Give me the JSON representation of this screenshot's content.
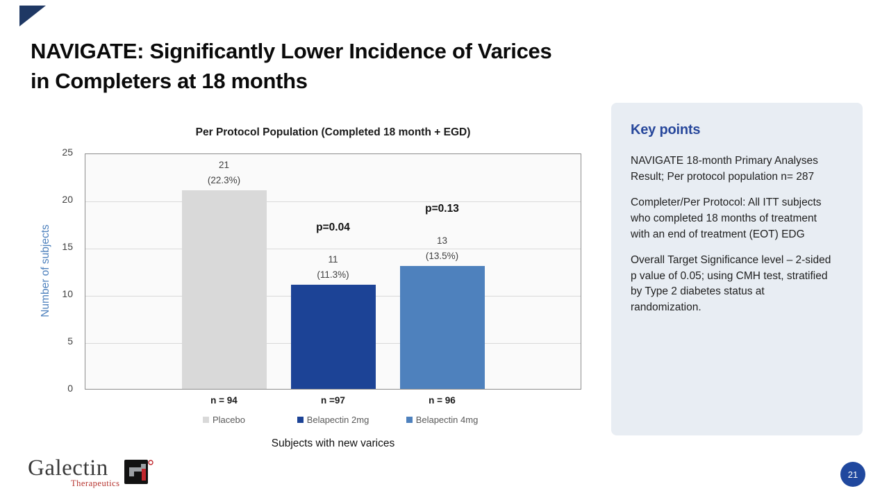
{
  "slide": {
    "title_line1": "NAVIGATE: Significantly Lower Incidence of Varices",
    "title_line2": "in Completers at 18 months",
    "page_number": "21"
  },
  "chart_data": {
    "type": "bar",
    "title": "Per Protocol Population (Completed 18 month + EGD)",
    "ylabel": "Number of subjects",
    "xlabel": "Subjects with new varices",
    "ylim": [
      0,
      25
    ],
    "yticks": [
      0,
      5,
      10,
      15,
      20,
      25
    ],
    "grid": "horizontal",
    "categories": [
      "Placebo",
      "Belapectin 2mg",
      "Belapectin 4mg"
    ],
    "values": [
      21,
      11,
      13
    ],
    "bar_labels": [
      [
        "21",
        "(22.3%)"
      ],
      [
        "11",
        "(11.3%)"
      ],
      [
        "13",
        "(13.5%)"
      ]
    ],
    "p_values": [
      "",
      "p=0.04",
      "p=0.13"
    ],
    "n_labels": [
      "n = 94",
      "n =97",
      "n = 96"
    ],
    "colors": [
      "#D9D9D9",
      "#1C4396",
      "#4E81BD"
    ],
    "legend_position": "bottom"
  },
  "key_points": {
    "heading": "Key points",
    "paragraphs": [
      "NAVIGATE 18-month Primary Analyses Result; Per protocol population n= 287",
      "Completer/Per Protocol: All ITT subjects who completed 18 months of treatment with an end of treatment (EOT) EDG",
      "Overall Target Significance level – 2-sided p value of 0.05; using CMH test, stratified by Type 2 diabetes status at randomization."
    ]
  },
  "logo": {
    "name": "Galectin",
    "sub": "Therapeutics",
    "mark": "gt-monogram"
  }
}
